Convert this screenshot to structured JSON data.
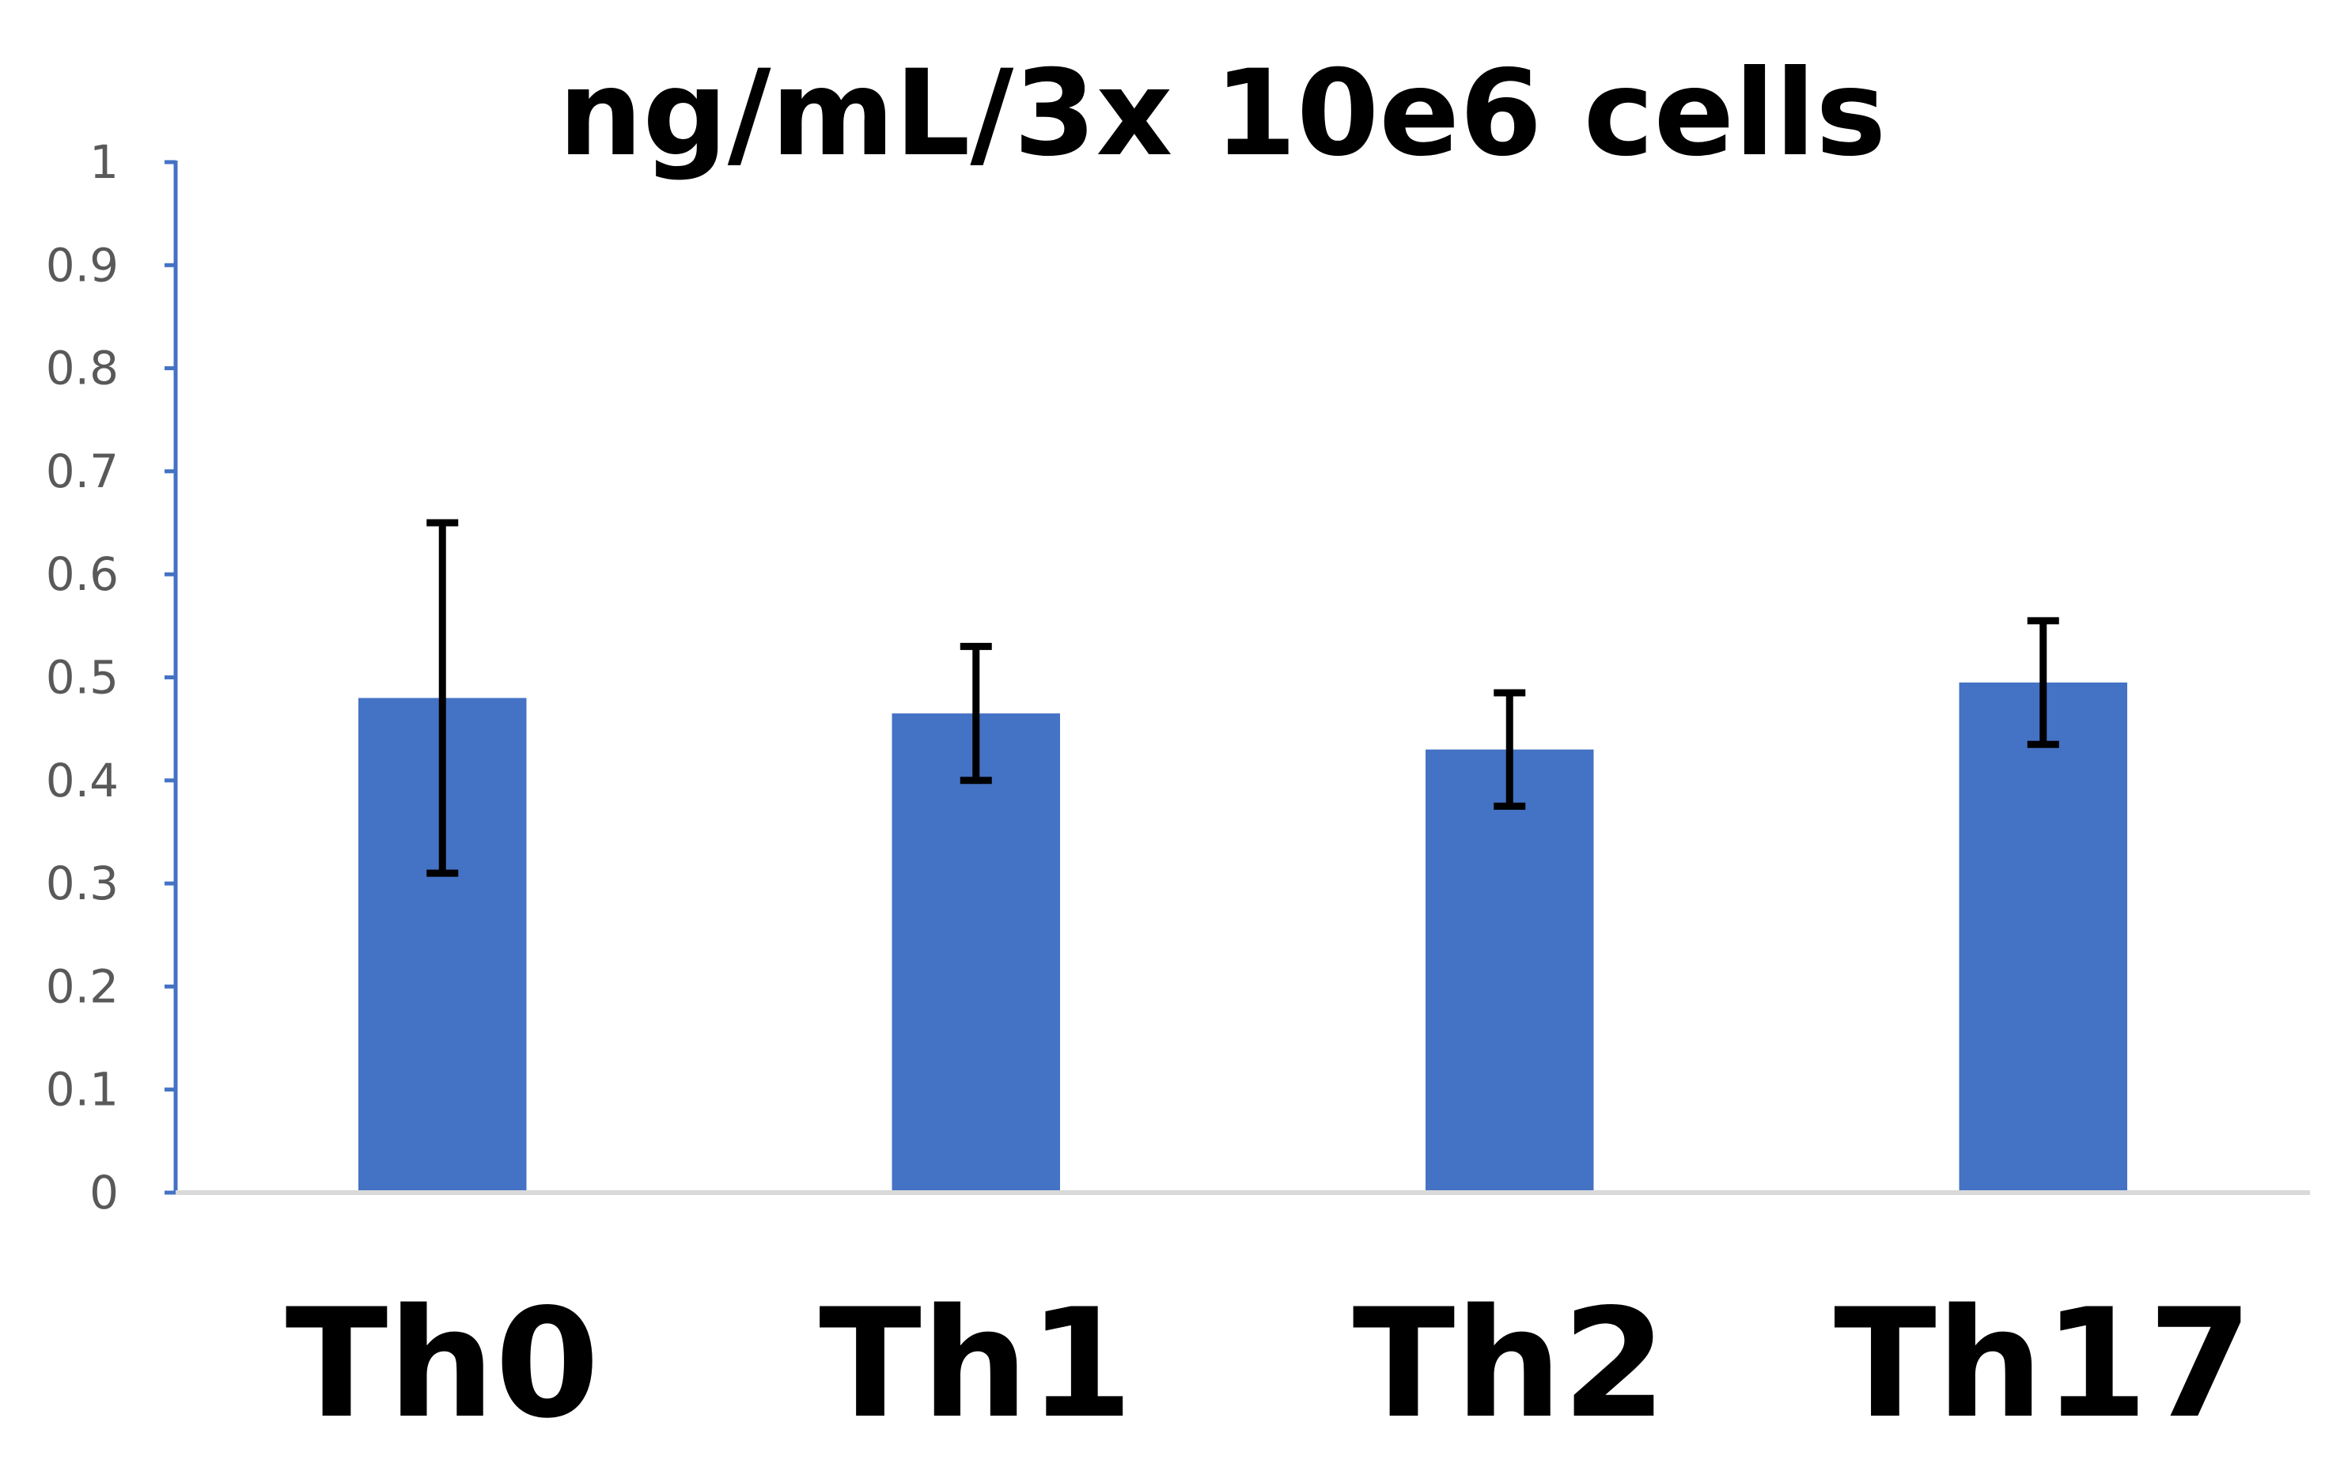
{
  "chart_data": {
    "type": "bar",
    "title": "ng/mL/3x 10e6 cells",
    "xlabel": "",
    "ylabel": "",
    "categories": [
      "Th0",
      "Th1",
      "Th2",
      "Th17"
    ],
    "series": [
      {
        "name": "ng/mL/3x 10e6 cells",
        "values": [
          0.48,
          0.465,
          0.43,
          0.495
        ],
        "error_low": [
          0.31,
          0.4,
          0.375,
          0.435
        ],
        "error_high": [
          0.65,
          0.53,
          0.485,
          0.555
        ]
      }
    ],
    "ylim": [
      0,
      1
    ],
    "yticks": [
      "0",
      "0.1",
      "0.2",
      "0.3",
      "0.4",
      "0.5",
      "0.6",
      "0.7",
      "0.8",
      "0.9",
      "1"
    ],
    "grid": false,
    "legend": "none"
  },
  "colors": {
    "bar": "#4472C4",
    "y_axis": "#4472C4",
    "x_axis": "#D9D9D9",
    "error_bar": "#000000"
  }
}
